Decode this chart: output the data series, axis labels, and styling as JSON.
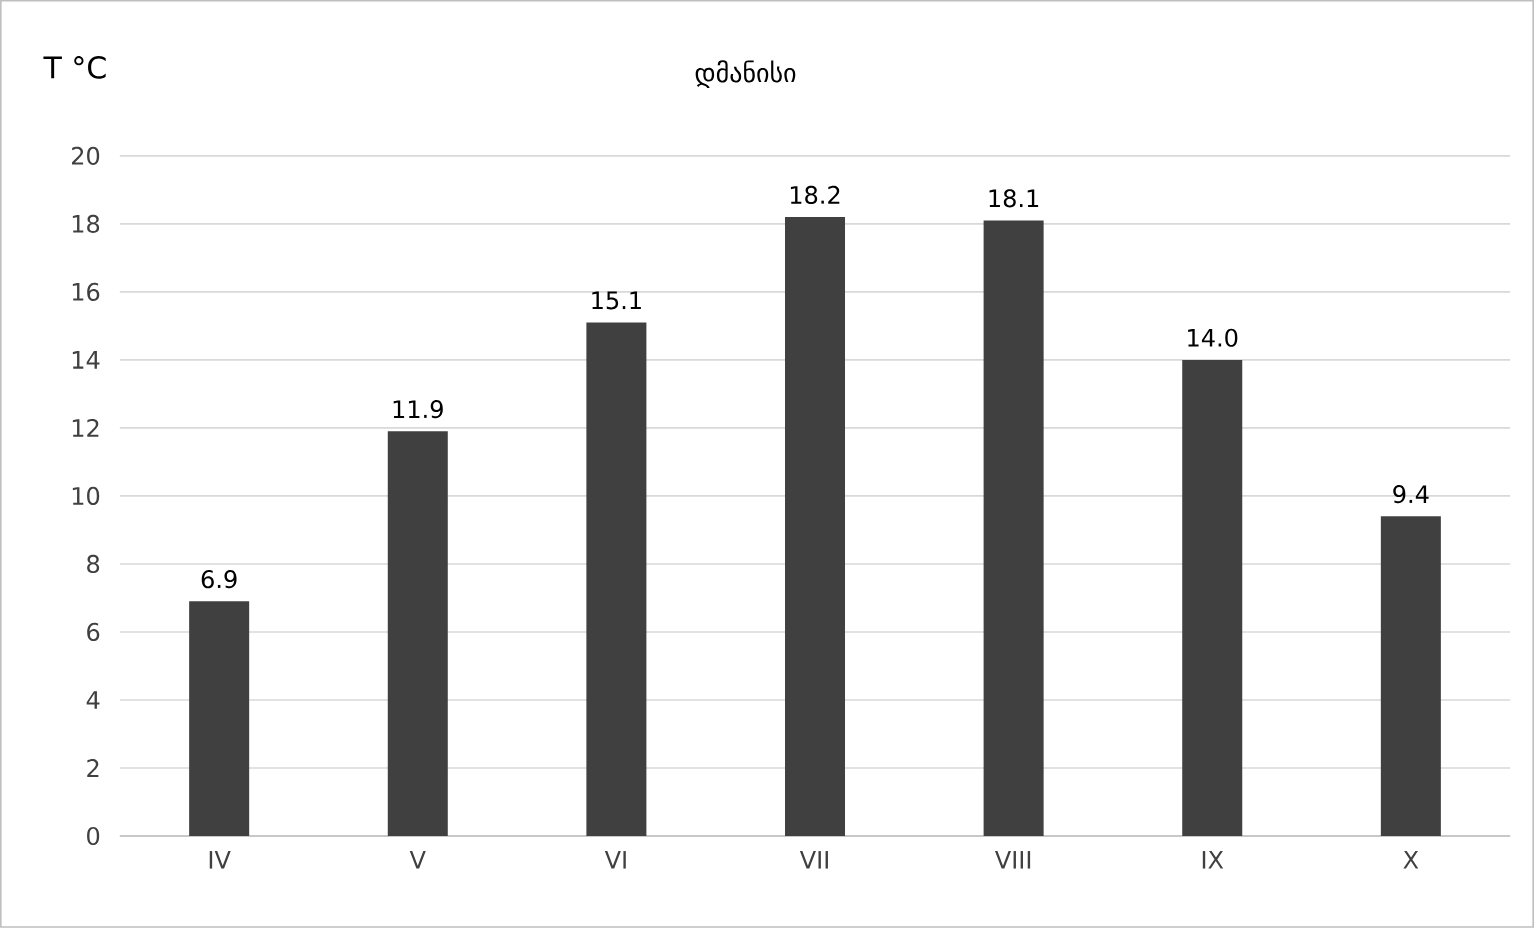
{
  "chart_data": {
    "type": "bar",
    "title": "დმანისი",
    "ylabel": "T °C",
    "categories": [
      "IV",
      "V",
      "VI",
      "VII",
      "VIII",
      "IX",
      "X"
    ],
    "values": [
      6.9,
      11.9,
      15.1,
      18.2,
      18.1,
      14.0,
      9.4
    ],
    "value_labels": [
      "6.9",
      "11.9",
      "15.1",
      "18.2",
      "18.1",
      "14.0",
      "9.4"
    ],
    "color": "#404040",
    "ylim": [
      0,
      20
    ],
    "yticks": [
      0,
      2,
      4,
      6,
      8,
      10,
      12,
      14,
      16,
      18,
      20
    ],
    "grid": "y"
  }
}
